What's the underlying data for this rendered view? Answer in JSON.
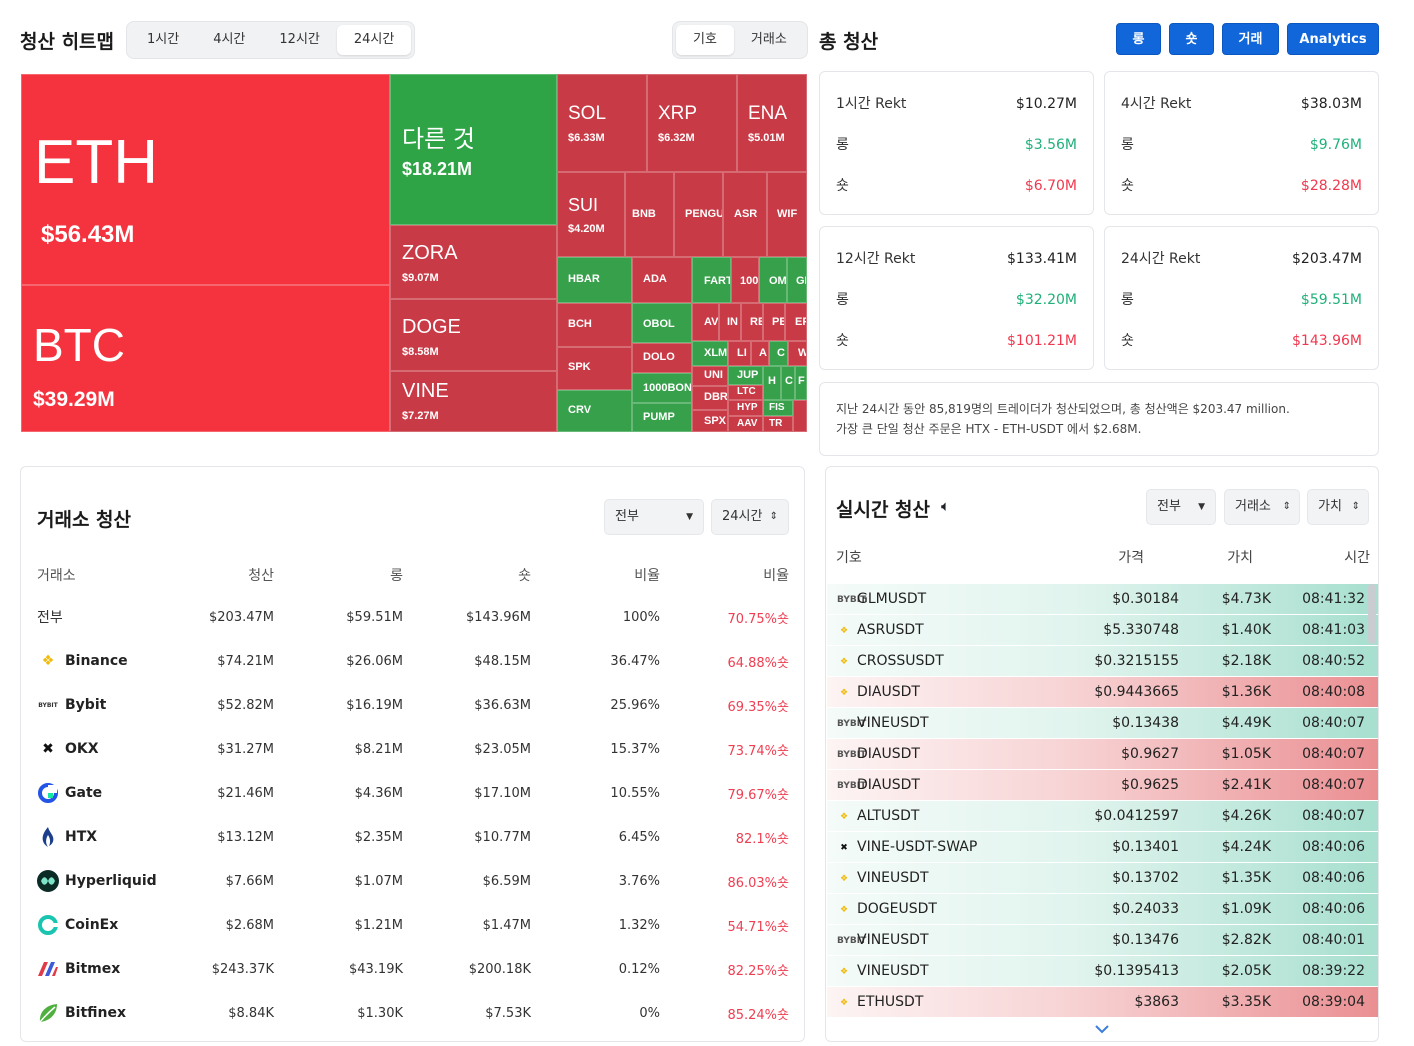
{
  "heatmap": {
    "title": "청산 히트맵",
    "tabs": [
      "1시간",
      "4시간",
      "12시간",
      "24시간"
    ],
    "active_tab": "24시간",
    "mode_tabs": [
      "기호",
      "거래소"
    ],
    "tiles": [
      {
        "sym": "ETH",
        "val": "$56.43M"
      },
      {
        "sym": "BTC",
        "val": "$39.29M"
      },
      {
        "sym": "다른 것",
        "val": "$18.21M"
      },
      {
        "sym": "ZORA",
        "val": "$9.07M"
      },
      {
        "sym": "DOGE",
        "val": "$8.58M"
      },
      {
        "sym": "VINE",
        "val": "$7.27M"
      },
      {
        "sym": "SOL",
        "val": "$6.33M"
      },
      {
        "sym": "XRP",
        "val": "$6.32M"
      },
      {
        "sym": "ENA",
        "val": "$5.01M"
      },
      {
        "sym": "SUI",
        "val": "$4.20M"
      },
      {
        "sym": "BNB"
      },
      {
        "sym": "PENGU"
      },
      {
        "sym": "ASR"
      },
      {
        "sym": "WIF"
      },
      {
        "sym": "HBAR"
      },
      {
        "sym": "ADA"
      },
      {
        "sym": "FART"
      },
      {
        "sym": "100"
      },
      {
        "sym": "OM"
      },
      {
        "sym": "GI"
      },
      {
        "sym": "BCH"
      },
      {
        "sym": "OBOL"
      },
      {
        "sym": "AV"
      },
      {
        "sym": "IN"
      },
      {
        "sym": "RE"
      },
      {
        "sym": "PE"
      },
      {
        "sym": "EF"
      },
      {
        "sym": "SPK"
      },
      {
        "sym": "DOLO"
      },
      {
        "sym": "XLM"
      },
      {
        "sym": "LI"
      },
      {
        "sym": "A"
      },
      {
        "sym": "C"
      },
      {
        "sym": "W"
      },
      {
        "sym": "CRV"
      },
      {
        "sym": "1000BON"
      },
      {
        "sym": "UNI"
      },
      {
        "sym": "JUP"
      },
      {
        "sym": "H"
      },
      {
        "sym": "C"
      },
      {
        "sym": "F"
      },
      {
        "sym": "PUMP"
      },
      {
        "sym": "DBR"
      },
      {
        "sym": "LTC"
      },
      {
        "sym": "HYP"
      },
      {
        "sym": "FIS"
      },
      {
        "sym": "SPX"
      },
      {
        "sym": "AAV"
      },
      {
        "sym": "TR"
      }
    ]
  },
  "total": {
    "title": "총 청산",
    "buttons": [
      "롱",
      "숏",
      "거래",
      "Analytics"
    ],
    "cards": [
      {
        "label": "1시간 Rekt",
        "total": "$10.27M",
        "long_label": "롱",
        "long": "$3.56M",
        "short_label": "숏",
        "short": "$6.70M"
      },
      {
        "label": "4시간 Rekt",
        "total": "$38.03M",
        "long_label": "롱",
        "long": "$9.76M",
        "short_label": "숏",
        "short": "$28.28M"
      },
      {
        "label": "12시간 Rekt",
        "total": "$133.41M",
        "long_label": "롱",
        "long": "$32.20M",
        "short_label": "숏",
        "short": "$101.21M"
      },
      {
        "label": "24시간 Rekt",
        "total": "$203.47M",
        "long_label": "롱",
        "long": "$59.51M",
        "short_label": "숏",
        "short": "$143.96M"
      }
    ],
    "summary_line1": "지난 24시간 동안 85,819명의 트레이더가 청산되었으며, 총 청산액은 $203.47 million.",
    "summary_line2": "가장 큰 단일 청산 주문은 HTX - ETH-USDT 에서 $2.68M."
  },
  "exchange": {
    "title": "거래소 청산",
    "filter": "전부",
    "period": "24시간",
    "columns": [
      "거래소",
      "청산",
      "롱",
      "숏",
      "비율",
      "비율"
    ],
    "rows": [
      {
        "name": "전부",
        "icon": "",
        "total": "$203.47M",
        "long": "$59.51M",
        "short": "$143.96M",
        "ratio": "100%",
        "short_ratio": "70.75%숏"
      },
      {
        "name": "Binance",
        "icon": "binance-icon",
        "total": "$74.21M",
        "long": "$26.06M",
        "short": "$48.15M",
        "ratio": "36.47%",
        "short_ratio": "64.88%숏"
      },
      {
        "name": "Bybit",
        "icon": "bybit-icon",
        "total": "$52.82M",
        "long": "$16.19M",
        "short": "$36.63M",
        "ratio": "25.96%",
        "short_ratio": "69.35%숏"
      },
      {
        "name": "OKX",
        "icon": "okx-icon",
        "total": "$31.27M",
        "long": "$8.21M",
        "short": "$23.05M",
        "ratio": "15.37%",
        "short_ratio": "73.74%숏"
      },
      {
        "name": "Gate",
        "icon": "gate-icon",
        "total": "$21.46M",
        "long": "$4.36M",
        "short": "$17.10M",
        "ratio": "10.55%",
        "short_ratio": "79.67%숏"
      },
      {
        "name": "HTX",
        "icon": "htx-icon",
        "total": "$13.12M",
        "long": "$2.35M",
        "short": "$10.77M",
        "ratio": "6.45%",
        "short_ratio": "82.1%숏"
      },
      {
        "name": "Hyperliquid",
        "icon": "hyperliquid-icon",
        "total": "$7.66M",
        "long": "$1.07M",
        "short": "$6.59M",
        "ratio": "3.76%",
        "short_ratio": "86.03%숏"
      },
      {
        "name": "CoinEx",
        "icon": "coinex-icon",
        "total": "$2.68M",
        "long": "$1.21M",
        "short": "$1.47M",
        "ratio": "1.32%",
        "short_ratio": "54.71%숏"
      },
      {
        "name": "Bitmex",
        "icon": "bitmex-icon",
        "total": "$243.37K",
        "long": "$43.19K",
        "short": "$200.18K",
        "ratio": "0.12%",
        "short_ratio": "82.25%숏"
      },
      {
        "name": "Bitfinex",
        "icon": "bitfinex-icon",
        "total": "$8.84K",
        "long": "$1.30K",
        "short": "$7.53K",
        "ratio": "0%",
        "short_ratio": "85.24%숏"
      }
    ]
  },
  "live": {
    "title": "실시간 청산",
    "filters": [
      "전부",
      "거래소",
      "가치"
    ],
    "columns": [
      "기호",
      "가격",
      "가치",
      "시간"
    ],
    "rows": [
      {
        "icon": "bybit-icon",
        "sym": "GLMUSDT",
        "price": "$0.30184",
        "value": "$4.73K",
        "time": "08:41:32",
        "side": "green"
      },
      {
        "icon": "binance-icon",
        "sym": "ASRUSDT",
        "price": "$5.330748",
        "value": "$1.40K",
        "time": "08:41:03",
        "side": "green"
      },
      {
        "icon": "binance-icon",
        "sym": "CROSSUSDT",
        "price": "$0.3215155",
        "value": "$2.18K",
        "time": "08:40:52",
        "side": "green"
      },
      {
        "icon": "binance-icon",
        "sym": "DIAUSDT",
        "price": "$0.9443665",
        "value": "$1.36K",
        "time": "08:40:08",
        "side": "red"
      },
      {
        "icon": "bybit-icon",
        "sym": "VINEUSDT",
        "price": "$0.13438",
        "value": "$4.49K",
        "time": "08:40:07",
        "side": "green"
      },
      {
        "icon": "bybit-icon",
        "sym": "DIAUSDT",
        "price": "$0.9627",
        "value": "$1.05K",
        "time": "08:40:07",
        "side": "red"
      },
      {
        "icon": "bybit-icon",
        "sym": "DIAUSDT",
        "price": "$0.9625",
        "value": "$2.41K",
        "time": "08:40:07",
        "side": "red"
      },
      {
        "icon": "binance-icon",
        "sym": "ALTUSDT",
        "price": "$0.0412597",
        "value": "$4.26K",
        "time": "08:40:07",
        "side": "green"
      },
      {
        "icon": "okx-icon",
        "sym": "VINE-USDT-SWAP",
        "price": "$0.13401",
        "value": "$4.24K",
        "time": "08:40:06",
        "side": "green"
      },
      {
        "icon": "binance-icon",
        "sym": "VINEUSDT",
        "price": "$0.13702",
        "value": "$1.35K",
        "time": "08:40:06",
        "side": "green"
      },
      {
        "icon": "binance-icon",
        "sym": "DOGEUSDT",
        "price": "$0.24033",
        "value": "$1.09K",
        "time": "08:40:06",
        "side": "green"
      },
      {
        "icon": "bybit-icon",
        "sym": "VINEUSDT",
        "price": "$0.13476",
        "value": "$2.82K",
        "time": "08:40:01",
        "side": "green"
      },
      {
        "icon": "binance-icon",
        "sym": "VINEUSDT",
        "price": "$0.1395413",
        "value": "$2.05K",
        "time": "08:39:22",
        "side": "green"
      },
      {
        "icon": "binance-icon",
        "sym": "ETHUSDT",
        "price": "$3863",
        "value": "$3.35K",
        "time": "08:39:04",
        "side": "red"
      }
    ]
  }
}
